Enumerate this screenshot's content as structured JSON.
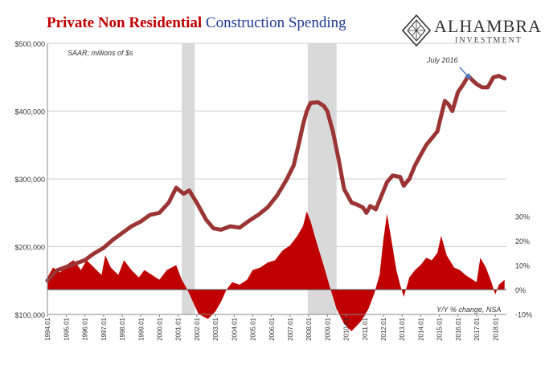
{
  "header": {
    "title_part1": "Private Non Residential",
    "title_part2": " Construction Spending"
  },
  "logo": {
    "name": "ALHAMBRA",
    "subtitle": "INVESTMENT"
  },
  "chart_data": {
    "type": "line",
    "left_axis_note": "SAAR; millions of $s",
    "right_axis_note": "Y/Y % change, NSA",
    "annotation": "July 2016",
    "y_left": {
      "ticks": [
        100000,
        200000,
        300000,
        400000,
        500000
      ],
      "labels": [
        "$100,000",
        "$200,000",
        "$300,000",
        "$400,000",
        "$500,000"
      ],
      "range": [
        100000,
        500000
      ]
    },
    "y_right": {
      "ticks": [
        -10,
        0,
        10,
        20,
        30
      ],
      "labels": [
        "-10%",
        "0%",
        "10%",
        "20%",
        "30%"
      ]
    },
    "x_ticks": [
      "1994.01",
      "1995.01",
      "1996.01",
      "1997.01",
      "1998.01",
      "1999.01",
      "2000.01",
      "2001.01",
      "2002.01",
      "2003.01",
      "2004.01",
      "2005.01",
      "2006.01",
      "2007.01",
      "2008.01",
      "2009.01",
      "2010.01",
      "2011.01",
      "2012.01",
      "2013.01",
      "2014.01",
      "2015.01",
      "2016.01",
      "2017.01",
      "2018.01"
    ],
    "x_range": [
      1994.0,
      2018.6
    ],
    "recessions": [
      [
        2001.2,
        2001.9
      ],
      [
        2007.95,
        2009.5
      ]
    ],
    "series": [
      {
        "name": "",
        "axis": "left",
        "style": "line",
        "color": "#9b3535",
        "points": [
          [
            1994.0,
            150000
          ],
          [
            1994.5,
            165000
          ],
          [
            1995.0,
            170000
          ],
          [
            1995.5,
            175000
          ],
          [
            1996.0,
            180000
          ],
          [
            1996.5,
            190000
          ],
          [
            1997.0,
            198000
          ],
          [
            1997.5,
            210000
          ],
          [
            1998.0,
            220000
          ],
          [
            1998.5,
            230000
          ],
          [
            1999.0,
            237000
          ],
          [
            1999.5,
            247000
          ],
          [
            2000.0,
            250000
          ],
          [
            2000.5,
            265000
          ],
          [
            2000.9,
            287000
          ],
          [
            2001.3,
            278000
          ],
          [
            2001.6,
            283000
          ],
          [
            2002.0,
            265000
          ],
          [
            2002.5,
            240000
          ],
          [
            2002.9,
            227000
          ],
          [
            2003.3,
            225000
          ],
          [
            2003.8,
            230000
          ],
          [
            2004.3,
            228000
          ],
          [
            2004.8,
            238000
          ],
          [
            2005.3,
            247000
          ],
          [
            2005.8,
            258000
          ],
          [
            2006.3,
            275000
          ],
          [
            2006.8,
            298000
          ],
          [
            2007.2,
            320000
          ],
          [
            2007.5,
            355000
          ],
          [
            2007.7,
            380000
          ],
          [
            2007.9,
            400000
          ],
          [
            2008.1,
            412000
          ],
          [
            2008.5,
            413000
          ],
          [
            2008.8,
            408000
          ],
          [
            2009.0,
            400000
          ],
          [
            2009.3,
            370000
          ],
          [
            2009.6,
            330000
          ],
          [
            2009.9,
            285000
          ],
          [
            2010.3,
            265000
          ],
          [
            2010.6,
            262000
          ],
          [
            2010.9,
            258000
          ],
          [
            2011.1,
            250000
          ],
          [
            2011.3,
            260000
          ],
          [
            2011.6,
            255000
          ],
          [
            2011.9,
            275000
          ],
          [
            2012.2,
            295000
          ],
          [
            2012.5,
            305000
          ],
          [
            2012.9,
            303000
          ],
          [
            2013.1,
            290000
          ],
          [
            2013.4,
            300000
          ],
          [
            2013.7,
            320000
          ],
          [
            2014.0,
            335000
          ],
          [
            2014.3,
            350000
          ],
          [
            2014.6,
            360000
          ],
          [
            2014.9,
            370000
          ],
          [
            2015.1,
            393000
          ],
          [
            2015.3,
            415000
          ],
          [
            2015.5,
            410000
          ],
          [
            2015.7,
            400000
          ],
          [
            2016.0,
            428000
          ],
          [
            2016.3,
            440000
          ],
          [
            2016.55,
            452000
          ],
          [
            2016.8,
            445000
          ],
          [
            2017.0,
            440000
          ],
          [
            2017.3,
            435000
          ],
          [
            2017.6,
            435000
          ],
          [
            2017.9,
            450000
          ],
          [
            2018.2,
            452000
          ],
          [
            2018.5,
            448000
          ]
        ]
      },
      {
        "name": "",
        "axis": "right",
        "style": "area",
        "color": "#c00000",
        "points": [
          [
            1994.0,
            5
          ],
          [
            1994.3,
            9
          ],
          [
            1994.7,
            7
          ],
          [
            1995.0,
            10
          ],
          [
            1995.4,
            12
          ],
          [
            1995.8,
            8
          ],
          [
            1996.1,
            12
          ],
          [
            1996.5,
            9
          ],
          [
            1996.9,
            6
          ],
          [
            1997.1,
            14
          ],
          [
            1997.4,
            9
          ],
          [
            1997.8,
            6
          ],
          [
            1998.1,
            12
          ],
          [
            1998.5,
            8
          ],
          [
            1998.9,
            5
          ],
          [
            1999.2,
            8
          ],
          [
            1999.6,
            6
          ],
          [
            2000.0,
            4
          ],
          [
            2000.4,
            8
          ],
          [
            2000.9,
            10
          ],
          [
            2001.2,
            4
          ],
          [
            2001.5,
            0
          ],
          [
            2001.8,
            -5
          ],
          [
            2002.1,
            -10
          ],
          [
            2002.6,
            -12
          ],
          [
            2003.0,
            -9
          ],
          [
            2003.3,
            -5
          ],
          [
            2003.6,
            0
          ],
          [
            2003.9,
            3
          ],
          [
            2004.3,
            2
          ],
          [
            2004.7,
            4
          ],
          [
            2005.0,
            8
          ],
          [
            2005.4,
            9
          ],
          [
            2005.8,
            11
          ],
          [
            2006.2,
            12
          ],
          [
            2006.6,
            16
          ],
          [
            2007.0,
            18
          ],
          [
            2007.4,
            22
          ],
          [
            2007.7,
            26
          ],
          [
            2007.9,
            32
          ],
          [
            2008.1,
            28
          ],
          [
            2008.4,
            20
          ],
          [
            2008.8,
            10
          ],
          [
            2009.1,
            2
          ],
          [
            2009.5,
            -8
          ],
          [
            2009.9,
            -14
          ],
          [
            2010.3,
            -17
          ],
          [
            2010.8,
            -13
          ],
          [
            2011.2,
            -8
          ],
          [
            2011.5,
            -2
          ],
          [
            2011.8,
            6
          ],
          [
            2012.0,
            20
          ],
          [
            2012.2,
            31
          ],
          [
            2012.4,
            22
          ],
          [
            2012.7,
            8
          ],
          [
            2012.9,
            2
          ],
          [
            2013.1,
            -3
          ],
          [
            2013.4,
            5
          ],
          [
            2013.7,
            8
          ],
          [
            2014.0,
            10
          ],
          [
            2014.3,
            13
          ],
          [
            2014.6,
            12
          ],
          [
            2014.9,
            15
          ],
          [
            2015.1,
            22
          ],
          [
            2015.4,
            14
          ],
          [
            2015.8,
            9
          ],
          [
            2016.1,
            8
          ],
          [
            2016.4,
            6
          ],
          [
            2016.8,
            4
          ],
          [
            2017.0,
            3
          ],
          [
            2017.2,
            13
          ],
          [
            2017.5,
            9
          ],
          [
            2017.8,
            3
          ],
          [
            2018.0,
            -2
          ],
          [
            2018.2,
            2
          ],
          [
            2018.5,
            4
          ]
        ]
      }
    ]
  }
}
